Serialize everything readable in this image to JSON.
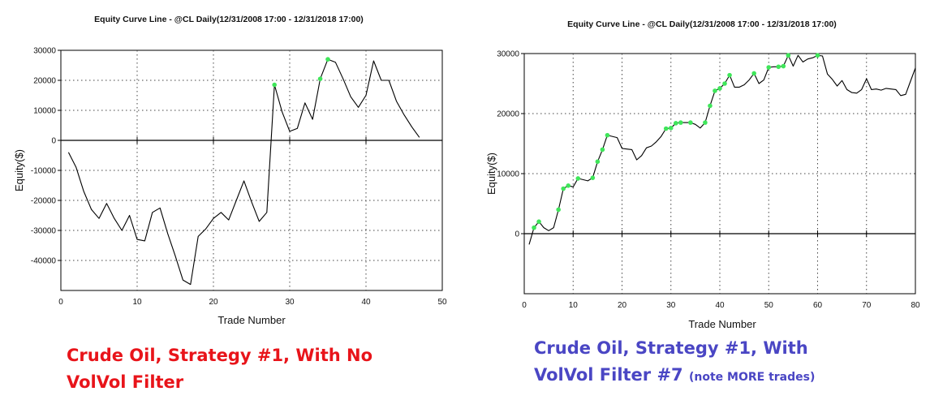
{
  "colors": {
    "caption_left": "#e8141a",
    "caption_right": "#4a46c4",
    "line": "#000000",
    "marker": "#3fe65a",
    "grid": "#444444"
  },
  "captions": {
    "left": {
      "line1": "Crude Oil, Strategy #1, With No",
      "line2": "VolVol Filter"
    },
    "right": {
      "line1": "Crude Oil, Strategy #1, With",
      "line2": "VolVol Filter #7",
      "note": "(note MORE trades)"
    }
  },
  "chart_data": [
    {
      "type": "line",
      "title": "Equity Curve Line - @CL Daily(12/31/2008 17:00 - 12/31/2018 17:00)",
      "xlabel": "Trade Number",
      "ylabel": "Equity($)",
      "xlim": [
        0,
        50
      ],
      "ylim": [
        -50000,
        30000
      ],
      "xticks": [
        0,
        10,
        20,
        30,
        40,
        50
      ],
      "xtick_labels": [
        "0",
        "10",
        "20",
        "30",
        "40",
        "50"
      ],
      "yticks": [
        30000,
        20000,
        10000,
        0,
        -10000,
        -20000,
        -30000,
        -40000
      ],
      "ytick_labels": [
        "30000",
        "20000",
        "10000",
        "0",
        "-10000",
        "-20000",
        "-30000",
        "-40000"
      ],
      "grid": true,
      "series": [
        {
          "name": "Equity",
          "x": [
            1,
            2,
            3,
            4,
            5,
            6,
            7,
            8,
            9,
            10,
            11,
            12,
            13,
            14,
            15,
            16,
            17,
            18,
            19,
            20,
            21,
            22,
            23,
            24,
            25,
            26,
            27,
            28,
            29,
            30,
            31,
            32,
            33,
            34,
            35,
            36,
            37,
            38,
            39,
            40,
            41,
            42,
            43,
            44,
            45,
            46,
            47
          ],
          "y": [
            -4000,
            -9000,
            -17000,
            -23000,
            -26000,
            -21000,
            -26000,
            -30000,
            -25000,
            -33000,
            -33500,
            -24000,
            -22500,
            -31000,
            -38500,
            -46500,
            -48000,
            -32000,
            -29500,
            -26000,
            -24000,
            -26500,
            -20000,
            -13500,
            -20500,
            -27000,
            -24000,
            18500,
            9500,
            3000,
            4000,
            12500,
            7000,
            20500,
            27000,
            26000,
            20500,
            14500,
            11000,
            15000,
            26500,
            20000,
            20000,
            13000,
            8500,
            4500,
            1000
          ]
        }
      ],
      "markers": {
        "x": [
          28,
          34,
          35
        ],
        "y": [
          18500,
          20500,
          27000
        ]
      }
    },
    {
      "type": "line",
      "title": "Equity Curve Line - @CL Daily(12/31/2008 17:00 - 12/31/2018 17:00)",
      "xlabel": "Trade Number",
      "ylabel": "Equity($)",
      "xlim": [
        0,
        80
      ],
      "ylim": [
        -10000,
        30000
      ],
      "xticks": [
        0,
        10,
        20,
        30,
        40,
        50,
        60,
        70,
        80
      ],
      "xtick_labels": [
        "0",
        "10",
        "20",
        "30",
        "40",
        "50",
        "60",
        "70",
        "80"
      ],
      "yticks": [
        30000,
        20000,
        10000,
        0
      ],
      "ytick_labels": [
        "30000",
        "20000",
        "10000",
        "0"
      ],
      "grid": true,
      "series": [
        {
          "name": "Equity",
          "x": [
            1,
            2,
            3,
            4,
            5,
            6,
            7,
            8,
            9,
            10,
            11,
            12,
            13,
            14,
            15,
            16,
            17,
            18,
            19,
            20,
            21,
            22,
            23,
            24,
            25,
            26,
            27,
            28,
            29,
            30,
            31,
            32,
            33,
            34,
            35,
            36,
            37,
            38,
            39,
            40,
            41,
            42,
            43,
            44,
            45,
            46,
            47,
            48,
            49,
            50,
            51,
            52,
            53,
            54,
            55,
            56,
            57,
            58,
            59,
            60,
            61,
            62,
            63,
            64,
            65,
            66,
            67,
            68,
            69,
            70,
            71,
            72,
            73,
            74,
            75,
            76,
            77,
            78,
            79,
            80
          ],
          "y": [
            -1800,
            1000,
            2000,
            1000,
            500,
            1000,
            4000,
            7500,
            8000,
            7800,
            9200,
            9000,
            8800,
            9300,
            12000,
            14000,
            16400,
            16200,
            16000,
            14200,
            14100,
            14000,
            12300,
            13000,
            14300,
            14600,
            15300,
            16200,
            17500,
            17600,
            18400,
            18500,
            18500,
            18500,
            18200,
            17600,
            18500,
            21300,
            23800,
            24200,
            25000,
            26400,
            24400,
            24400,
            24800,
            25600,
            26700,
            25000,
            25600,
            27700,
            27800,
            27800,
            27900,
            29700,
            27900,
            29700,
            28600,
            29100,
            29300,
            29700,
            29600,
            26600,
            25700,
            24600,
            25500,
            24000,
            23500,
            23400,
            24000,
            25800,
            24000,
            24100,
            23900,
            24200,
            24100,
            24000,
            23000,
            23200,
            25400,
            27600
          ]
        }
      ],
      "markers": {
        "x": [
          2,
          3,
          7,
          8,
          9,
          11,
          14,
          15,
          16,
          17,
          29,
          30,
          31,
          32,
          34,
          37,
          38,
          39,
          40,
          41,
          42,
          47,
          50,
          52,
          53,
          54,
          60
        ],
        "y": [
          1000,
          2000,
          4000,
          7500,
          8000,
          9200,
          9300,
          12000,
          14000,
          16400,
          17500,
          17600,
          18400,
          18500,
          18500,
          18500,
          21300,
          23800,
          24200,
          25000,
          26400,
          26700,
          27700,
          27800,
          27900,
          29700,
          29700
        ]
      }
    }
  ]
}
